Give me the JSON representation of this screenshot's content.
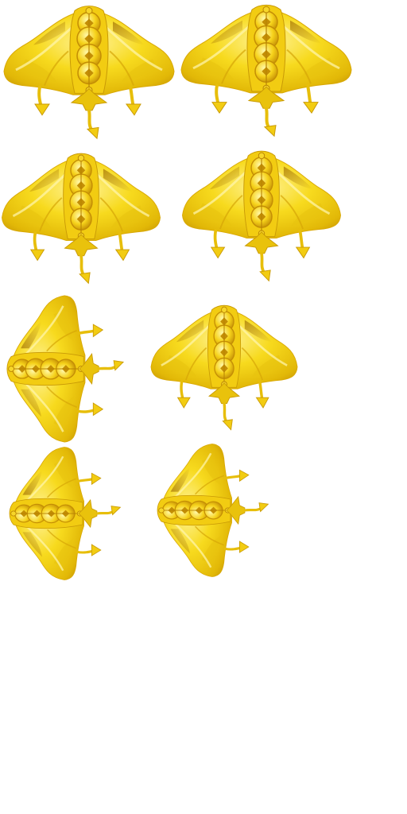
{
  "sheet": {
    "sprite_name": "golden-manta-ray",
    "frame_count": 8,
    "colors": {
      "body_light": "#FFF27A",
      "body_mid": "#F5D40A",
      "body_dark": "#C99A06",
      "shade_brown": "#A97908",
      "coin_light": "#FFE94A",
      "coin_rim": "#C48E05",
      "background": "#FFFFFF"
    },
    "frames": [
      {
        "id": "frame-1",
        "facing": "down"
      },
      {
        "id": "frame-2",
        "facing": "down"
      },
      {
        "id": "frame-3",
        "facing": "down"
      },
      {
        "id": "frame-4",
        "facing": "down"
      },
      {
        "id": "frame-5",
        "facing": "right"
      },
      {
        "id": "frame-6",
        "facing": "down"
      },
      {
        "id": "frame-7",
        "facing": "right"
      },
      {
        "id": "frame-8",
        "facing": "right"
      }
    ]
  }
}
